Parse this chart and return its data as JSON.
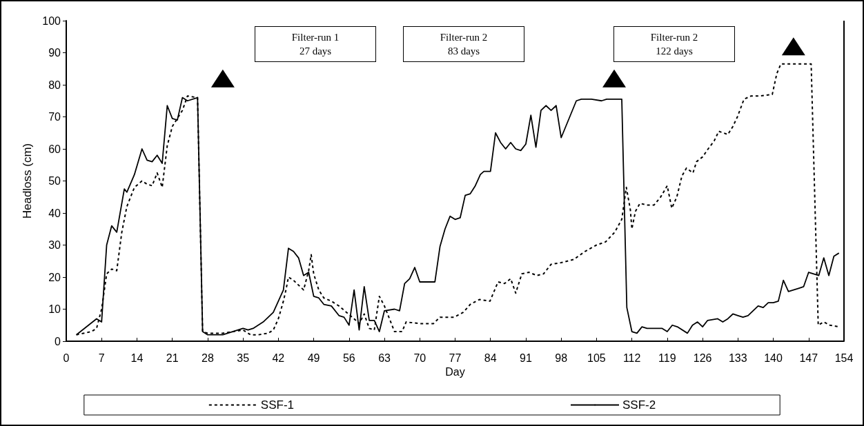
{
  "chart_data": {
    "type": "line",
    "xlabel": "Day",
    "ylabel": "Headloss (cm)",
    "xlim": [
      0,
      154
    ],
    "xticks": [
      0,
      7,
      14,
      21,
      28,
      35,
      42,
      49,
      56,
      63,
      70,
      77,
      84,
      91,
      98,
      105,
      112,
      119,
      126,
      133,
      140,
      147,
      154
    ],
    "ylim": [
      0,
      100
    ],
    "yticks": [
      0,
      10,
      20,
      30,
      40,
      50,
      60,
      70,
      80,
      90,
      100
    ],
    "grid": false,
    "legend": "bottom",
    "marker": "none",
    "annotations": [
      "Filter-run 1\n27 days",
      "Filter-run 2\n83 days",
      "Filter-run 2\n122 days"
    ],
    "series": [
      {
        "name": "SSF-1",
        "color": "#000000",
        "line_style": "dashed",
        "x": [
          2,
          5,
          6,
          7,
          8,
          9,
          10,
          11,
          12,
          13.5,
          15,
          16,
          17,
          18,
          19,
          20,
          21,
          23,
          24,
          26,
          27,
          28,
          31,
          35,
          36.5,
          38,
          40,
          41,
          42,
          43,
          43.5,
          44,
          45,
          47,
          48,
          48.5,
          49,
          50,
          51,
          52.5,
          54,
          55.5,
          57,
          58,
          59,
          60,
          61,
          62,
          63,
          64,
          65,
          66.5,
          67.3,
          70,
          72.7,
          74,
          76.8,
          78.6,
          80,
          81.8,
          83.9,
          85.5,
          86.8,
          88,
          89,
          90.2,
          91.6,
          93.2,
          94.5,
          96,
          98,
          100.5,
          102.7,
          105,
          106.8,
          108.6,
          110,
          110.9,
          111.7,
          112,
          112.7,
          113.6,
          115,
          116.4,
          117.7,
          119,
          119.9,
          120.9,
          121.9,
          122.8,
          124.1,
          124.8,
          126,
          127.1,
          128.3,
          129.2,
          131,
          132,
          132.9,
          134.2,
          135.6,
          137.2,
          139.8,
          140.7,
          141.5,
          147.5,
          148.9,
          150,
          151.2,
          153
        ],
        "values": [
          2,
          3,
          4,
          10,
          21,
          22.5,
          22,
          34,
          42,
          48,
          50,
          49,
          48.5,
          52.5,
          48,
          61,
          67,
          72,
          76.5,
          76,
          3,
          2.5,
          2.5,
          3.5,
          2,
          2,
          2.5,
          3.5,
          7,
          12.5,
          16,
          20,
          19,
          16,
          22,
          27,
          21,
          16,
          13.5,
          12.5,
          11,
          9,
          7,
          5.5,
          8.5,
          4,
          3.5,
          14,
          11,
          7,
          3,
          3,
          6,
          5.5,
          5.5,
          7.5,
          7.5,
          9,
          11.5,
          13,
          12.5,
          18.5,
          18,
          19.5,
          15,
          21,
          21.5,
          20.5,
          21,
          24,
          24.5,
          25.5,
          28,
          30,
          31,
          34,
          38,
          48,
          41,
          35,
          40.5,
          43,
          42.5,
          42.5,
          45,
          48.5,
          41.5,
          45,
          51.5,
          54,
          52.5,
          56,
          57.5,
          60,
          62.5,
          65.5,
          64.5,
          67,
          70,
          75.5,
          76.5,
          76.5,
          77,
          83.5,
          86.5,
          86.5,
          5,
          6,
          5,
          4.5
        ]
      },
      {
        "name": "SSF-2",
        "color": "#000000",
        "line_style": "solid",
        "x": [
          2,
          6,
          7,
          8,
          9,
          10,
          11.5,
          12,
          13.5,
          15,
          16,
          17,
          18,
          19,
          20,
          21,
          22,
          23,
          24,
          26,
          27,
          28,
          31,
          35,
          36,
          37,
          39,
          41,
          42,
          43,
          44,
          45,
          46,
          47,
          48,
          49,
          50,
          51,
          52.5,
          54,
          55,
          56,
          57,
          58,
          59,
          60,
          61,
          62,
          63,
          65,
          66,
          67,
          68,
          69,
          70,
          73,
          74,
          75,
          76,
          77,
          78,
          79,
          80,
          81,
          82,
          82.7,
          84,
          85,
          86,
          87,
          88,
          89,
          90,
          91,
          92,
          93,
          94,
          95,
          96,
          97,
          98,
          101,
          102,
          104,
          106,
          107,
          110,
          111,
          112,
          113,
          114,
          115,
          118,
          119,
          120,
          121,
          123,
          124,
          125,
          126,
          127,
          129,
          130,
          131,
          132,
          133,
          134,
          135,
          137,
          138,
          139,
          140,
          141,
          142,
          143,
          145,
          146,
          147,
          148,
          149,
          150,
          151,
          152,
          153
        ],
        "values": [
          2,
          7,
          6,
          30,
          36,
          34,
          47.5,
          46.5,
          52,
          60,
          56.5,
          56,
          58,
          55.5,
          73.5,
          69.5,
          69,
          76,
          75,
          76,
          3,
          2,
          2,
          4,
          3.5,
          4,
          6,
          9,
          12.5,
          16,
          29,
          28,
          26,
          20.5,
          21.5,
          14,
          13.5,
          11.5,
          11,
          8,
          7.5,
          5,
          16,
          3.5,
          17,
          6.5,
          6.5,
          3,
          9.5,
          10,
          9.5,
          18,
          19.5,
          23,
          18.5,
          18.5,
          29.5,
          35,
          39,
          38,
          38.5,
          45.5,
          46,
          48.5,
          52,
          53,
          53,
          65,
          62,
          60,
          62,
          60,
          59.5,
          61.5,
          70.5,
          60.5,
          72,
          73.5,
          72,
          73.5,
          63.5,
          75,
          75.5,
          75.5,
          75,
          75.5,
          75.5,
          10.5,
          3,
          2.5,
          4.5,
          4,
          4,
          3,
          5,
          4.5,
          2.5,
          5,
          6,
          4.5,
          6.5,
          7,
          6,
          7,
          8.5,
          8,
          7.5,
          8,
          11,
          10.5,
          12,
          12,
          12.5,
          19,
          15.5,
          16.5,
          17,
          21.5,
          21,
          20.5,
          26,
          20.5,
          26.5,
          27.5
        ]
      },
      {
        "type": "scatter",
        "marker": "triangle",
        "color": "#000000",
        "x": [
          31,
          108.5,
          144
        ],
        "values": [
          82,
          82,
          92
        ]
      }
    ]
  }
}
